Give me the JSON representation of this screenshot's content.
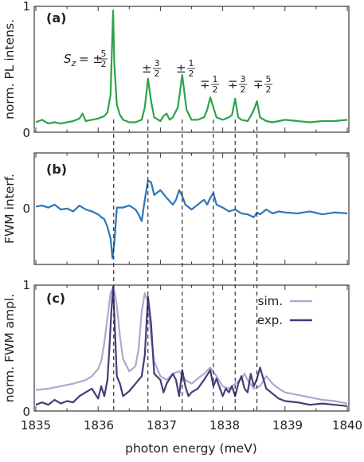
{
  "chart_data": [
    {
      "panel": "(a)",
      "type": "line",
      "ylabel": "norm. PL intens.",
      "xlim": [
        1835,
        1840
      ],
      "ylim": [
        0,
        1
      ],
      "yticks": [
        "0",
        "1"
      ],
      "colors": {
        "pl": "#2ca34a"
      },
      "peak_labels": [
        {
          "x": 1836.25,
          "y": 0.58,
          "text": "S_z = ±5/2"
        },
        {
          "x": 1836.8,
          "y": 0.48,
          "text": "±3/2"
        },
        {
          "x": 1837.35,
          "y": 0.48,
          "text": "±1/2"
        },
        {
          "x": 1837.85,
          "y": 0.31,
          "text": "∓1/2"
        },
        {
          "x": 1838.2,
          "y": 0.31,
          "text": "∓3/2"
        },
        {
          "x": 1838.55,
          "y": 0.31,
          "text": "∓5/2"
        }
      ],
      "series": [
        {
          "key": "pl",
          "x": [
            1835.0,
            1835.1,
            1835.2,
            1835.3,
            1835.4,
            1835.5,
            1835.6,
            1835.7,
            1835.75,
            1835.8,
            1835.9,
            1836.0,
            1836.1,
            1836.15,
            1836.2,
            1836.24,
            1836.26,
            1836.3,
            1836.35,
            1836.4,
            1836.5,
            1836.6,
            1836.7,
            1836.75,
            1836.8,
            1836.85,
            1836.9,
            1837.0,
            1837.05,
            1837.1,
            1837.15,
            1837.2,
            1837.28,
            1837.35,
            1837.42,
            1837.5,
            1837.6,
            1837.7,
            1837.75,
            1837.8,
            1837.85,
            1837.9,
            1838.0,
            1838.1,
            1838.15,
            1838.2,
            1838.25,
            1838.3,
            1838.4,
            1838.45,
            1838.5,
            1838.55,
            1838.6,
            1838.7,
            1838.8,
            1838.9,
            1839.0,
            1839.2,
            1839.4,
            1839.6,
            1839.8,
            1840.0
          ],
          "y": [
            0.08,
            0.1,
            0.07,
            0.08,
            0.07,
            0.08,
            0.09,
            0.11,
            0.15,
            0.09,
            0.1,
            0.11,
            0.13,
            0.16,
            0.3,
            0.98,
            0.55,
            0.22,
            0.14,
            0.1,
            0.08,
            0.08,
            0.1,
            0.2,
            0.43,
            0.25,
            0.12,
            0.09,
            0.13,
            0.15,
            0.1,
            0.12,
            0.2,
            0.46,
            0.18,
            0.1,
            0.1,
            0.12,
            0.18,
            0.28,
            0.2,
            0.12,
            0.1,
            0.12,
            0.14,
            0.27,
            0.12,
            0.1,
            0.09,
            0.13,
            0.18,
            0.25,
            0.12,
            0.09,
            0.08,
            0.09,
            0.1,
            0.09,
            0.08,
            0.09,
            0.09,
            0.1
          ]
        }
      ]
    },
    {
      "panel": "(b)",
      "type": "line",
      "ylabel": "FWM interf.",
      "xlim": [
        1835,
        1840
      ],
      "ylim": [
        -0.55,
        0.55
      ],
      "yticks": [
        "0"
      ],
      "colors": {
        "fwm": "#2e75b6"
      },
      "series": [
        {
          "key": "fwm",
          "x": [
            1835.0,
            1835.1,
            1835.2,
            1835.3,
            1835.4,
            1835.5,
            1835.6,
            1835.7,
            1835.8,
            1835.9,
            1836.0,
            1836.05,
            1836.1,
            1836.15,
            1836.2,
            1836.23,
            1836.26,
            1836.3,
            1836.4,
            1836.5,
            1836.6,
            1836.65,
            1836.7,
            1836.75,
            1836.8,
            1836.85,
            1836.9,
            1837.0,
            1837.1,
            1837.2,
            1837.25,
            1837.3,
            1837.35,
            1837.4,
            1837.5,
            1837.6,
            1837.7,
            1837.75,
            1837.8,
            1837.85,
            1837.9,
            1838.0,
            1838.1,
            1838.2,
            1838.3,
            1838.4,
            1838.5,
            1838.55,
            1838.6,
            1838.7,
            1838.8,
            1838.9,
            1839.0,
            1839.2,
            1839.4,
            1839.6,
            1839.8,
            1840.0
          ],
          "y": [
            0.03,
            0.04,
            0.02,
            0.05,
            0.0,
            0.01,
            -0.02,
            0.04,
            0.0,
            -0.02,
            -0.05,
            -0.08,
            -0.1,
            -0.18,
            -0.3,
            -0.5,
            -0.35,
            0.02,
            0.02,
            0.04,
            0.0,
            -0.05,
            -0.12,
            0.1,
            0.3,
            0.28,
            0.15,
            0.2,
            0.12,
            0.05,
            0.1,
            0.2,
            0.14,
            0.05,
            0.0,
            0.05,
            0.1,
            0.05,
            0.12,
            0.17,
            0.05,
            0.02,
            -0.02,
            0.0,
            -0.04,
            -0.05,
            -0.08,
            -0.03,
            -0.05,
            0.0,
            -0.04,
            -0.02,
            -0.03,
            -0.04,
            -0.02,
            -0.05,
            -0.03,
            -0.04
          ]
        }
      ]
    },
    {
      "panel": "(c)",
      "type": "line",
      "ylabel": "norm. FWM ampl.",
      "xlabel": "photon energy (meV)",
      "xlim": [
        1835,
        1840
      ],
      "ylim": [
        0,
        1
      ],
      "yticks": [
        "0",
        "1"
      ],
      "xticks": [
        "1835",
        "1836",
        "1837",
        "1838",
        "1839",
        "1840"
      ],
      "legend_position": "top-right",
      "colors": {
        "sim": "#b0a8cf",
        "exp": "#463c78"
      },
      "series": [
        {
          "key": "sim",
          "name": "sim.",
          "x": [
            1835.0,
            1835.2,
            1835.4,
            1835.6,
            1835.8,
            1835.9,
            1836.0,
            1836.05,
            1836.1,
            1836.15,
            1836.2,
            1836.25,
            1836.3,
            1836.35,
            1836.4,
            1836.5,
            1836.6,
            1836.65,
            1836.7,
            1836.75,
            1836.8,
            1836.85,
            1836.9,
            1837.0,
            1837.1,
            1837.2,
            1837.3,
            1837.4,
            1837.5,
            1837.6,
            1837.7,
            1837.8,
            1837.9,
            1838.0,
            1838.1,
            1838.2,
            1838.3,
            1838.35,
            1838.4,
            1838.5,
            1838.6,
            1838.7,
            1838.8,
            1838.9,
            1839.0,
            1839.2,
            1839.4,
            1839.6,
            1839.8,
            1840.0
          ],
          "y": [
            0.17,
            0.18,
            0.2,
            0.22,
            0.25,
            0.28,
            0.34,
            0.4,
            0.55,
            0.75,
            0.95,
            1.0,
            0.85,
            0.6,
            0.42,
            0.32,
            0.36,
            0.5,
            0.8,
            0.95,
            0.88,
            0.6,
            0.4,
            0.28,
            0.25,
            0.3,
            0.32,
            0.25,
            0.22,
            0.26,
            0.3,
            0.35,
            0.28,
            0.2,
            0.18,
            0.22,
            0.26,
            0.3,
            0.25,
            0.18,
            0.2,
            0.28,
            0.22,
            0.18,
            0.15,
            0.13,
            0.11,
            0.09,
            0.08,
            0.06
          ]
        },
        {
          "key": "exp",
          "name": "exp.",
          "x": [
            1835.0,
            1835.1,
            1835.2,
            1835.3,
            1835.4,
            1835.5,
            1835.6,
            1835.7,
            1835.8,
            1835.9,
            1836.0,
            1836.05,
            1836.1,
            1836.15,
            1836.18,
            1836.21,
            1836.24,
            1836.27,
            1836.3,
            1836.35,
            1836.4,
            1836.5,
            1836.6,
            1836.7,
            1836.75,
            1836.8,
            1836.85,
            1836.9,
            1837.0,
            1837.05,
            1837.1,
            1837.2,
            1837.25,
            1837.3,
            1837.35,
            1837.4,
            1837.45,
            1837.5,
            1837.6,
            1837.7,
            1837.8,
            1837.85,
            1837.9,
            1838.0,
            1838.05,
            1838.1,
            1838.15,
            1838.2,
            1838.25,
            1838.3,
            1838.35,
            1838.4,
            1838.45,
            1838.5,
            1838.55,
            1838.6,
            1838.7,
            1838.8,
            1838.9,
            1839.0,
            1839.2,
            1839.4,
            1839.6,
            1839.8,
            1840.0
          ],
          "y": [
            0.05,
            0.07,
            0.05,
            0.09,
            0.06,
            0.08,
            0.07,
            0.12,
            0.15,
            0.18,
            0.1,
            0.2,
            0.12,
            0.25,
            0.5,
            0.78,
            1.0,
            0.65,
            0.28,
            0.22,
            0.12,
            0.16,
            0.22,
            0.28,
            0.45,
            0.92,
            0.7,
            0.3,
            0.25,
            0.15,
            0.22,
            0.3,
            0.25,
            0.12,
            0.33,
            0.2,
            0.12,
            0.15,
            0.18,
            0.25,
            0.33,
            0.2,
            0.26,
            0.12,
            0.18,
            0.15,
            0.2,
            0.12,
            0.22,
            0.28,
            0.18,
            0.15,
            0.3,
            0.2,
            0.26,
            0.35,
            0.18,
            0.14,
            0.1,
            0.08,
            0.07,
            0.05,
            0.06,
            0.05,
            0.04
          ]
        }
      ]
    }
  ],
  "guide_lines": [
    1836.25,
    1836.8,
    1837.35,
    1837.85,
    1838.2,
    1838.55
  ]
}
